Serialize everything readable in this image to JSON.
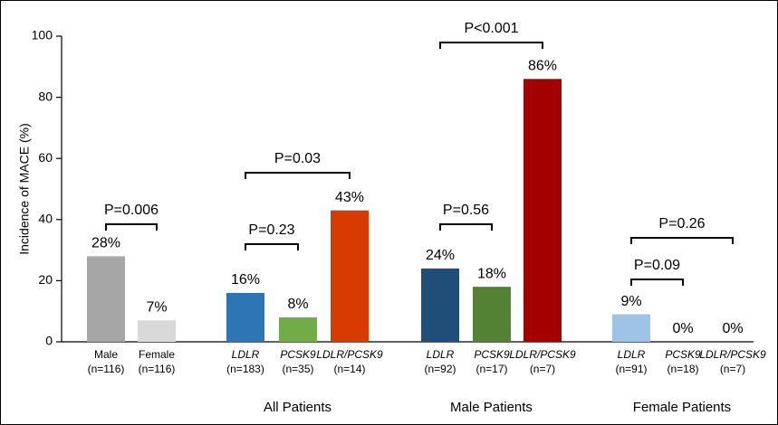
{
  "chart_data": {
    "type": "bar",
    "y_label": "Incidence of MACE (%)",
    "categories": [
      "Male",
      "Female",
      "LDLR",
      "PCSK9",
      "LDLR/PCSK9",
      "LDLR",
      "PCSK9",
      "LDLR/PCSK9",
      "LDLR",
      "PCSK9",
      "LDLR/PCSK9"
    ],
    "category_italic": [
      false,
      false,
      true,
      true,
      true,
      true,
      true,
      true,
      true,
      true,
      true
    ],
    "sample_sizes": [
      "(n=116)",
      "(n=116)",
      "(n=183)",
      "(n=35)",
      "(n=14)",
      "(n=92)",
      "(n=17)",
      "(n=7)",
      "(n=91)",
      "(n=18)",
      "(n=7)"
    ],
    "values": [
      28,
      7,
      16,
      8,
      43,
      24,
      18,
      86,
      9,
      0,
      0
    ],
    "value_labels": [
      "28%",
      "7%",
      "16%",
      "8%",
      "43%",
      "24%",
      "18%",
      "86%",
      "9%",
      "0%",
      "0%"
    ],
    "colors": [
      "#a6a6a6",
      "#d9d9d9",
      "#2e75b6",
      "#70ad47",
      "#d83b01",
      "#1f4e79",
      "#548235",
      "#a50000",
      "#9dc3e6",
      "#c5e0b4",
      "#f4b183"
    ],
    "groups": [
      {
        "label": "All Patients",
        "start": 2,
        "end": 4
      },
      {
        "label": "Male Patients",
        "start": 5,
        "end": 7
      },
      {
        "label": "Female Patients",
        "start": 8,
        "end": 10
      }
    ],
    "annotations": [
      {
        "text": "P=0.006",
        "from": 0,
        "to": 1
      },
      {
        "text": "P=0.23",
        "from": 2,
        "to": 3
      },
      {
        "text": "P=0.03",
        "from": 2,
        "to": 4
      },
      {
        "text": "P<0.001",
        "from": 5,
        "to": 7
      },
      {
        "text": "P=0.56",
        "from": 5,
        "to": 6
      },
      {
        "text": "P=0.26",
        "from": 8,
        "to": 10
      },
      {
        "text": "P=0.09",
        "from": 8,
        "to": 9
      }
    ],
    "ylim": [
      0,
      100
    ],
    "yticks": [
      0,
      20,
      40,
      60,
      80,
      100
    ]
  }
}
